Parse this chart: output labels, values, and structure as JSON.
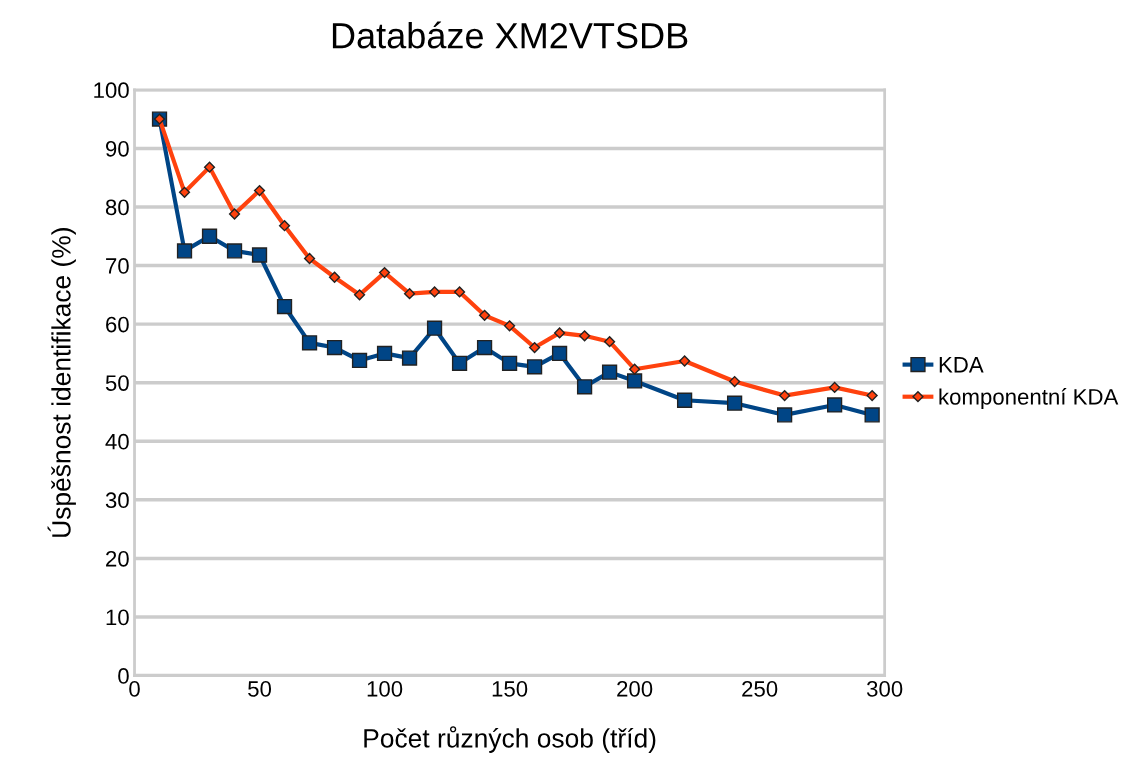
{
  "chart_data": {
    "type": "line",
    "title": "Databáze XM2VTSDB",
    "xlabel": "Počet různých osob (tříd)",
    "ylabel": "Úspěšnost identifikace (%)",
    "x": [
      10,
      20,
      30,
      40,
      50,
      60,
      70,
      80,
      90,
      100,
      110,
      120,
      130,
      140,
      150,
      160,
      170,
      180,
      190,
      200,
      220,
      240,
      260,
      280,
      295
    ],
    "series": [
      {
        "name": "KDA",
        "color": "#004586",
        "marker": "square",
        "values": [
          95,
          72.5,
          75,
          72.5,
          71.8,
          63,
          56.8,
          56,
          53.8,
          55,
          54.2,
          59.3,
          53.3,
          56,
          53.3,
          52.7,
          55,
          49.3,
          51.8,
          50.3,
          47,
          46.5,
          44.5,
          46.2,
          44.5
        ]
      },
      {
        "name": "komponentní KDA",
        "color": "#ff420e",
        "marker": "diamond",
        "values": [
          95,
          82.5,
          86.8,
          78.8,
          82.8,
          76.8,
          71.2,
          68,
          65,
          68.8,
          65.2,
          65.5,
          65.5,
          61.5,
          59.7,
          56,
          58.5,
          58,
          57,
          52.3,
          53.7,
          50.2,
          47.8,
          49.2,
          47.8
        ]
      }
    ],
    "xlim": [
      0,
      300
    ],
    "xticks": [
      0,
      50,
      100,
      150,
      200,
      250,
      300
    ],
    "ylim": [
      0,
      100
    ],
    "yticks": [
      0,
      10,
      20,
      30,
      40,
      50,
      60,
      70,
      80,
      90,
      100
    ],
    "grid": "y",
    "legend": "right"
  }
}
